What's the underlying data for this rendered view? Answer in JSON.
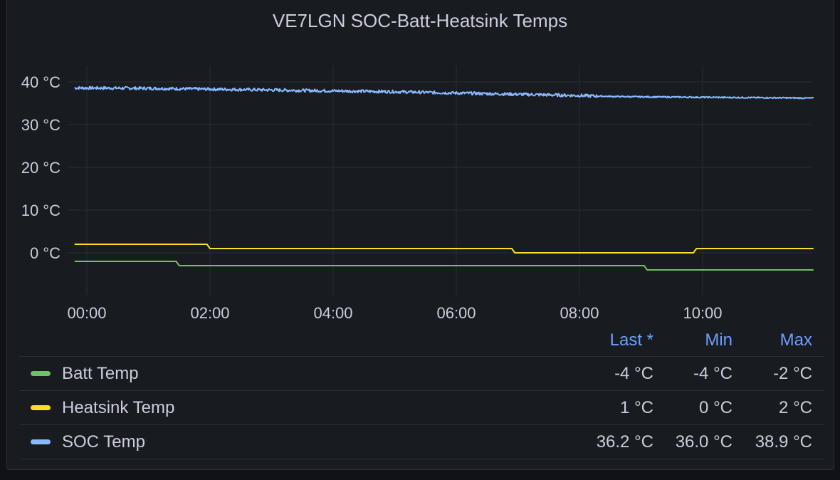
{
  "chart_data": {
    "type": "line",
    "title": "VE7LGN SOC-Batt-Heatsink Temps",
    "y_ticks": [
      "40 °C",
      "30 °C",
      "20 °C",
      "10 °C",
      "0 °C"
    ],
    "y_tick_values": [
      40,
      30,
      20,
      10,
      0
    ],
    "x_ticks": [
      "00:00",
      "02:00",
      "04:00",
      "06:00",
      "08:00",
      "10:00"
    ],
    "x_tick_hours": [
      0,
      2,
      4,
      6,
      8,
      10
    ],
    "xlim_hours": [
      -0.33,
      11.85
    ],
    "ylim": [
      -10,
      43
    ],
    "grid": true,
    "legend_placement": "bottom",
    "series": [
      {
        "name": "Batt Temp",
        "color": "#73bf69",
        "points": [
          [
            -0.2,
            -2
          ],
          [
            1.45,
            -2
          ],
          [
            1.5,
            -3
          ],
          [
            9.05,
            -3
          ],
          [
            9.1,
            -4
          ],
          [
            11.8,
            -4
          ]
        ]
      },
      {
        "name": "Heatsink Temp",
        "color": "#fade2a",
        "points": [
          [
            -0.2,
            2
          ],
          [
            1.95,
            2
          ],
          [
            2.0,
            1
          ],
          [
            6.9,
            1
          ],
          [
            6.95,
            0
          ],
          [
            9.85,
            0
          ],
          [
            9.9,
            1
          ],
          [
            11.8,
            1
          ]
        ]
      },
      {
        "name": "SOC Temp",
        "color": "#8ab8ff",
        "noisy": true,
        "points": [
          [
            -0.2,
            38.6
          ],
          [
            1.0,
            38.5
          ],
          [
            2.0,
            38.3
          ],
          [
            3.0,
            38.1
          ],
          [
            4.0,
            37.9
          ],
          [
            5.0,
            37.7
          ],
          [
            6.0,
            37.4
          ],
          [
            7.0,
            37.1
          ],
          [
            8.0,
            36.8
          ],
          [
            8.5,
            36.6
          ],
          [
            9.0,
            36.5
          ],
          [
            10.0,
            36.4
          ],
          [
            11.0,
            36.3
          ],
          [
            11.8,
            36.2
          ]
        ]
      }
    ]
  },
  "legend": {
    "headers": {
      "last": "Last *",
      "min": "Min",
      "max": "Max"
    },
    "rows": [
      {
        "name": "Batt Temp",
        "color": "#73bf69",
        "last": "-4 °C",
        "min": "-4 °C",
        "max": "-2 °C"
      },
      {
        "name": "Heatsink Temp",
        "color": "#fade2a",
        "last": "1 °C",
        "min": "0 °C",
        "max": "2 °C"
      },
      {
        "name": "SOC Temp",
        "color": "#8ab8ff",
        "last": "36.2 °C",
        "min": "36.0 °C",
        "max": "38.9 °C"
      }
    ]
  }
}
